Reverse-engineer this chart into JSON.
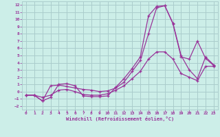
{
  "bg_color": "#cceee8",
  "grid_color": "#aacccc",
  "line_color": "#993399",
  "xlim": [
    -0.5,
    23.5
  ],
  "ylim": [
    -2.5,
    12.5
  ],
  "xticks": [
    0,
    1,
    2,
    3,
    4,
    5,
    6,
    7,
    8,
    9,
    10,
    11,
    12,
    13,
    14,
    15,
    16,
    17,
    18,
    19,
    20,
    21,
    22,
    23
  ],
  "yticks": [
    -2,
    -1,
    0,
    1,
    2,
    3,
    4,
    5,
    6,
    7,
    8,
    9,
    10,
    11,
    12
  ],
  "xlabel": "Windchill (Refroidissement éolien,°C)",
  "line1_x": [
    0,
    1,
    2,
    3,
    4,
    5,
    6,
    7,
    8,
    9,
    10,
    11,
    12,
    13,
    14,
    15,
    16,
    17,
    18,
    19,
    20,
    21,
    22,
    23
  ],
  "line1_y": [
    -0.5,
    -0.5,
    -1.3,
    -0.8,
    1.0,
    1.1,
    0.8,
    -0.6,
    -0.7,
    -0.7,
    -0.6,
    0.6,
    1.8,
    3.2,
    4.8,
    10.5,
    11.8,
    11.9,
    9.4,
    4.8,
    4.5,
    7.0,
    4.6,
    3.6
  ],
  "line2_x": [
    0,
    1,
    2,
    3,
    4,
    5,
    6,
    7,
    8,
    9,
    10,
    11,
    12,
    13,
    14,
    15,
    16,
    17,
    18,
    19,
    20,
    21,
    22,
    23
  ],
  "line2_y": [
    -0.5,
    -0.5,
    -1.3,
    0.8,
    0.9,
    0.7,
    0.5,
    0.3,
    0.2,
    0.0,
    0.1,
    0.5,
    1.3,
    2.8,
    4.3,
    8.0,
    11.6,
    11.9,
    9.5,
    5.0,
    3.0,
    1.8,
    4.8,
    3.7
  ],
  "line3_x": [
    0,
    1,
    2,
    3,
    4,
    5,
    6,
    7,
    8,
    9,
    10,
    11,
    12,
    13,
    14,
    15,
    16,
    17,
    18,
    19,
    20,
    21,
    22,
    23
  ],
  "line3_y": [
    -0.5,
    -0.5,
    -0.8,
    -0.5,
    0.2,
    0.3,
    0.0,
    -0.4,
    -0.5,
    -0.5,
    -0.3,
    0.2,
    0.8,
    1.8,
    2.8,
    4.5,
    5.5,
    5.5,
    4.5,
    2.5,
    2.0,
    1.5,
    3.5,
    3.5
  ]
}
